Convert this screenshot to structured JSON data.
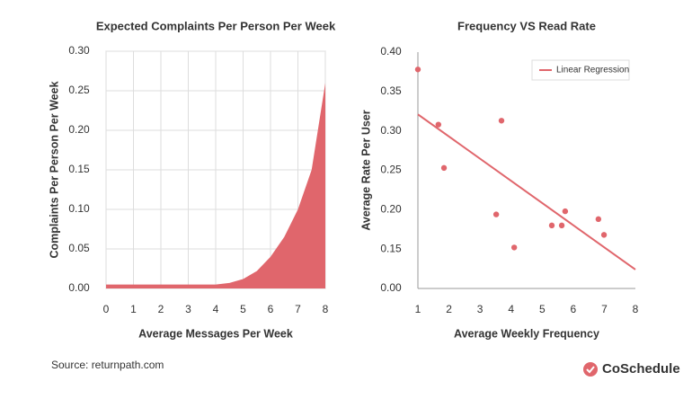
{
  "chart_data": [
    {
      "type": "area",
      "title": "Expected Complaints Per Person Per Week",
      "xlabel": "Average Messages Per Week",
      "ylabel": "Complaints Per Person Per Week",
      "x": [
        0,
        0.5,
        1,
        1.5,
        2,
        2.5,
        3,
        3.5,
        4,
        4.5,
        5,
        5.5,
        6,
        6.5,
        7,
        7.5,
        8
      ],
      "values": [
        0.005,
        0.005,
        0.005,
        0.005,
        0.005,
        0.005,
        0.005,
        0.005,
        0.005,
        0.007,
        0.012,
        0.022,
        0.04,
        0.065,
        0.1,
        0.15,
        0.26
      ],
      "color": "#e0666c",
      "grid": true,
      "xlim": [
        0,
        8
      ],
      "xticks": [
        0,
        1,
        2,
        3,
        4,
        5,
        6,
        7,
        8
      ],
      "ylim": [
        0,
        0.3
      ],
      "yticks": [
        {
          "value": 0,
          "label": "0.00"
        },
        {
          "value": 0.05,
          "label": "0.05"
        },
        {
          "value": 0.1,
          "label": "0.10"
        },
        {
          "value": 0.15,
          "label": "0.15"
        },
        {
          "value": 0.2,
          "label": "0.20"
        },
        {
          "value": 0.25,
          "label": "0.25"
        },
        {
          "value": 0.3,
          "label": "0.30"
        }
      ]
    },
    {
      "type": "scatter",
      "title": "Frequency VS Read Rate",
      "xlabel": "Average Weekly Frequency",
      "ylabel": "Average Rate Per User",
      "x": [
        1.0,
        1.66,
        1.84,
        3.69,
        3.52,
        4.1,
        5.31,
        5.63,
        5.74,
        6.81,
        6.99
      ],
      "values": [
        0.378,
        0.308,
        0.253,
        0.313,
        0.194,
        0.152,
        0.18,
        0.18,
        0.198,
        0.188,
        0.168
      ],
      "color": "#e0666c",
      "grid": false,
      "legend": "upper right",
      "regression": {
        "name": "Linear Regression",
        "x": [
          1,
          8
        ],
        "values": [
          0.321,
          0.124
        ],
        "color": "#e0666c"
      },
      "xlim": [
        1,
        8
      ],
      "xticks": [
        1,
        2,
        3,
        4,
        5,
        6,
        7,
        8
      ],
      "ylim": [
        0.1,
        0.4
      ],
      "yticks": [
        {
          "value": 0.15,
          "label": "0.15"
        },
        {
          "value": 0.2,
          "label": "0.20"
        },
        {
          "value": 0.25,
          "label": "0.25"
        },
        {
          "value": 0.3,
          "label": "0.30"
        },
        {
          "value": 0.35,
          "label": "0.35"
        },
        {
          "value": 0.4,
          "label": "0.40"
        }
      ],
      "y_floor_label": "0.00"
    }
  ],
  "source": "Source: returnpath.com",
  "brand": "CoSchedule"
}
